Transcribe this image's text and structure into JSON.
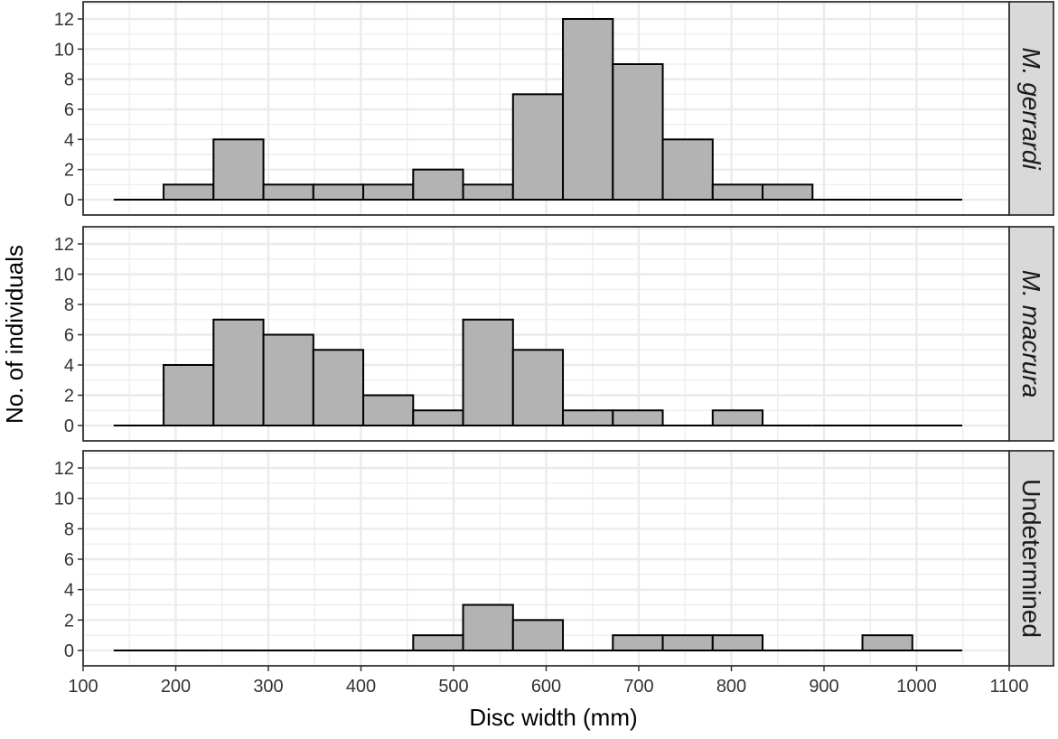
{
  "chart_data": {
    "type": "bar",
    "subtype": "faceted-histogram",
    "xlabel": "Disc width (mm)",
    "ylabel": "No. of individuals",
    "xlim": [
      100,
      1100
    ],
    "x_ticks": [
      "100",
      "200",
      "300",
      "400",
      "500",
      "600",
      "700",
      "800",
      "900",
      "1000",
      "1100"
    ],
    "ylim": [
      0,
      12.8
    ],
    "y_ticks": [
      "0",
      "2",
      "4",
      "6",
      "8",
      "10",
      "12"
    ],
    "grid": true,
    "theme": "bw",
    "bin_start": 133,
    "bin_width": 53.9,
    "bin_count": 17,
    "bar_fill": "#b3b3b3",
    "bar_outline": "#000000",
    "grid_color": "#ebebeb",
    "strip_fill": "#d9d9d9",
    "panels": [
      {
        "label": "M. gerrardi",
        "italic": true,
        "values": [
          0,
          1,
          4,
          1,
          1,
          1,
          2,
          1,
          7,
          12,
          9,
          4,
          1,
          1,
          0,
          0,
          0
        ]
      },
      {
        "label": "M. macrura",
        "italic": true,
        "values": [
          0,
          4,
          7,
          6,
          5,
          2,
          1,
          7,
          5,
          1,
          1,
          0,
          1,
          0,
          0,
          0,
          0
        ]
      },
      {
        "label": "Undetermined",
        "italic": false,
        "values": [
          0,
          0,
          0,
          0,
          0,
          0,
          1,
          3,
          2,
          0,
          1,
          1,
          1,
          0,
          0,
          1,
          0
        ]
      }
    ]
  }
}
